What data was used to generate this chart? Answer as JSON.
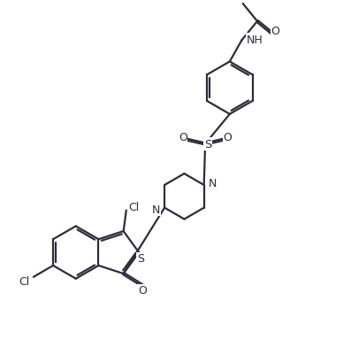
{
  "background_color": "#ffffff",
  "line_color": "#2d2d3a",
  "line_width": 1.6,
  "figsize": [
    3.97,
    4.02
  ],
  "dpi": 100,
  "xlim": [
    0,
    10
  ],
  "ylim": [
    0,
    10
  ]
}
